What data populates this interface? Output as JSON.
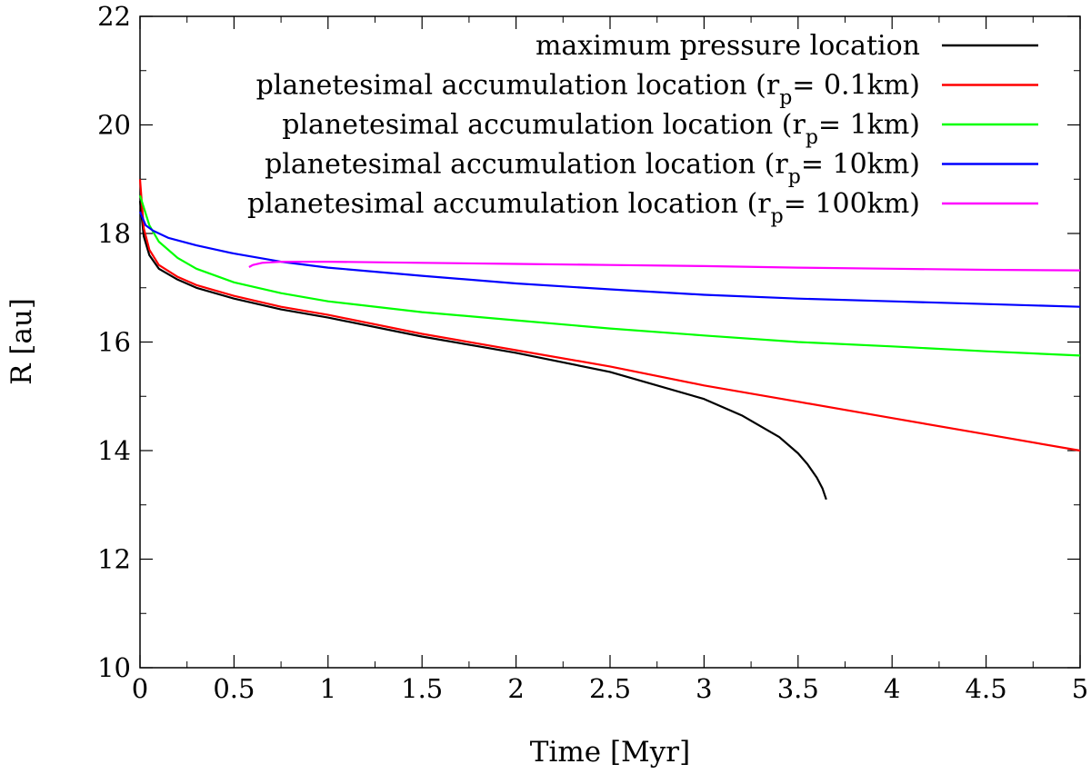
{
  "chart_data": {
    "type": "line",
    "title": "",
    "xlabel": "Time [Myr]",
    "ylabel": "R [au]",
    "xlim": [
      0,
      5
    ],
    "ylim": [
      10,
      22
    ],
    "grid": false,
    "legend_position": "top-right",
    "x_ticks": [
      0,
      0.5,
      1,
      1.5,
      2,
      2.5,
      3,
      3.5,
      4,
      4.5,
      5
    ],
    "x_tick_labels": [
      "0",
      "0.5",
      "1",
      "1.5",
      "2",
      "2.5",
      "3",
      "3.5",
      "4",
      "4.5",
      "5"
    ],
    "y_ticks": [
      10,
      12,
      14,
      16,
      18,
      20,
      22
    ],
    "y_tick_labels": [
      "10",
      "12",
      "14",
      "16",
      "18",
      "20",
      "22"
    ],
    "series": [
      {
        "name": "maximum pressure location",
        "label_main": "maximum pressure location",
        "label_sub": "",
        "label_tail": "",
        "color": "#000000",
        "x": [
          0,
          0.02,
          0.05,
          0.1,
          0.2,
          0.3,
          0.5,
          0.75,
          1.0,
          1.5,
          2.0,
          2.5,
          3.0,
          3.2,
          3.4,
          3.5,
          3.55,
          3.6,
          3.63,
          3.65
        ],
        "y": [
          18.6,
          17.95,
          17.6,
          17.35,
          17.15,
          17.0,
          16.8,
          16.6,
          16.45,
          16.1,
          15.8,
          15.45,
          14.95,
          14.65,
          14.25,
          13.95,
          13.75,
          13.5,
          13.3,
          13.1
        ]
      },
      {
        "name": "planetesimal accumulation location (rp= 0.1km)",
        "label_main": "planetesimal accumulation location (r",
        "label_sub": "p",
        "label_tail": "= 0.1km)",
        "color": "#ff0000",
        "x": [
          0,
          0.02,
          0.05,
          0.1,
          0.2,
          0.3,
          0.5,
          0.75,
          1.0,
          1.5,
          2.0,
          2.5,
          3.0,
          3.5,
          4.0,
          4.5,
          5.0
        ],
        "y": [
          19.0,
          18.1,
          17.7,
          17.42,
          17.2,
          17.05,
          16.85,
          16.65,
          16.5,
          16.15,
          15.85,
          15.55,
          15.2,
          14.9,
          14.6,
          14.3,
          14.0
        ]
      },
      {
        "name": "planetesimal accumulation location (rp= 1km)",
        "label_main": "planetesimal accumulation location (r",
        "label_sub": "p",
        "label_tail": "= 1km)",
        "color": "#00ff00",
        "x": [
          0,
          0.05,
          0.1,
          0.2,
          0.3,
          0.5,
          0.75,
          1.0,
          1.5,
          2.0,
          2.5,
          3.0,
          3.5,
          4.0,
          4.5,
          5.0
        ],
        "y": [
          18.7,
          18.15,
          17.85,
          17.55,
          17.35,
          17.1,
          16.9,
          16.75,
          16.55,
          16.4,
          16.25,
          16.12,
          16.0,
          15.92,
          15.83,
          15.75
        ]
      },
      {
        "name": "planetesimal accumulation location (rp= 10km)",
        "label_main": "planetesimal accumulation location (r",
        "label_sub": "p",
        "label_tail": "= 10km)",
        "color": "#0000ff",
        "x": [
          0,
          0.03,
          0.07,
          0.15,
          0.3,
          0.5,
          0.75,
          1.0,
          1.5,
          2.0,
          2.5,
          3.0,
          3.5,
          4.0,
          4.5,
          5.0
        ],
        "y": [
          18.4,
          18.15,
          18.05,
          17.92,
          17.78,
          17.63,
          17.48,
          17.37,
          17.22,
          17.08,
          16.97,
          16.87,
          16.8,
          16.75,
          16.7,
          16.65
        ]
      },
      {
        "name": "planetesimal accumulation location (rp= 100km)",
        "label_main": "planetesimal accumulation location (r",
        "label_sub": "p",
        "label_tail": "= 100km)",
        "color": "#ff00ff",
        "x": [
          0.58,
          0.6,
          0.65,
          0.75,
          1.0,
          1.5,
          2.0,
          2.5,
          3.0,
          3.5,
          4.0,
          4.5,
          5.0
        ],
        "y": [
          17.38,
          17.42,
          17.46,
          17.48,
          17.48,
          17.46,
          17.44,
          17.42,
          17.4,
          17.37,
          17.35,
          17.33,
          17.32
        ]
      }
    ]
  }
}
